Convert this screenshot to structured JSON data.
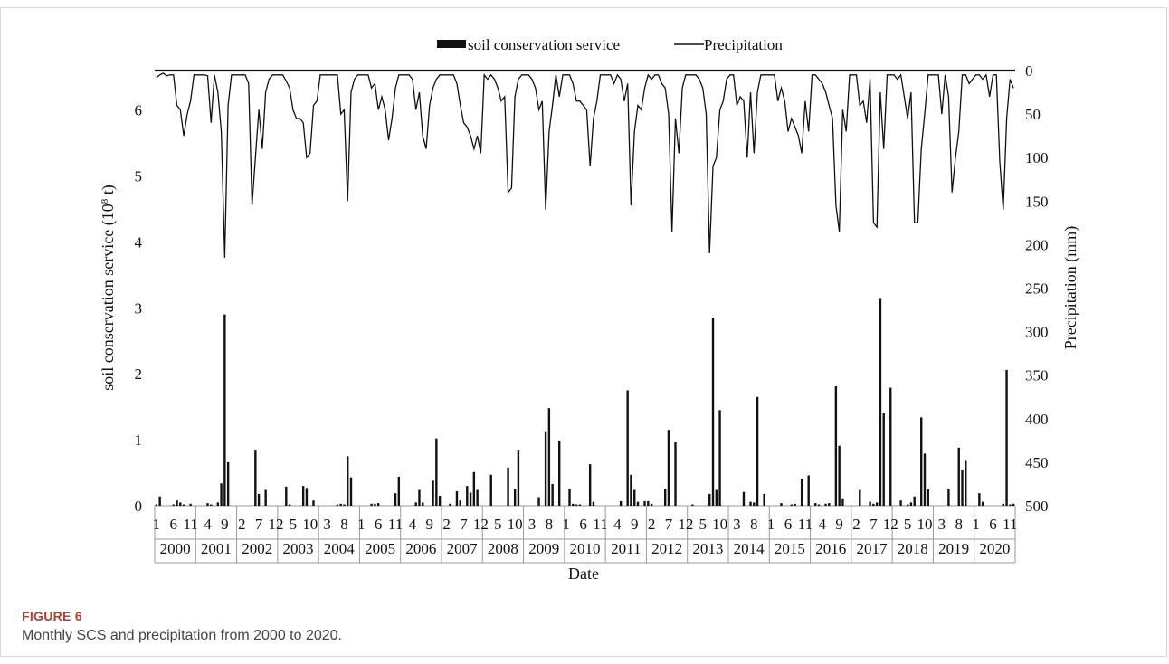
{
  "figure": {
    "label": "FIGURE 6",
    "caption": "Monthly SCS and precipitation from 2000 to 2020."
  },
  "chart_data": {
    "type": "bar+line",
    "xlabel": "Date",
    "ylabel_left": "soil conservation service (10^8 t)",
    "ylabel_left_main": "soil conservation service (10",
    "ylabel_left_sup": "8",
    "ylabel_left_tail": " t)",
    "ylabel_right": "Precipitation (mm)",
    "ylim_left": [
      0,
      6.6
    ],
    "ylim_right": [
      0,
      500
    ],
    "right_axis_inverted": true,
    "yticks_left": [
      "0",
      "1",
      "2",
      "3",
      "4",
      "5",
      "6"
    ],
    "yticks_right": [
      "0",
      "50",
      "100",
      "150",
      "200",
      "250",
      "300",
      "350",
      "400",
      "450",
      "500"
    ],
    "legend": {
      "position": "top-center",
      "entries": [
        "soil conservation service",
        "Precipitation"
      ]
    },
    "years": [
      "2000",
      "2001",
      "2002",
      "2003",
      "2004",
      "2005",
      "2006",
      "2007",
      "2008",
      "2009",
      "2010",
      "2011",
      "2012",
      "2013",
      "2014",
      "2015",
      "2016",
      "2017",
      "2018",
      "2019",
      "2020"
    ],
    "month_tick_labels": [
      [
        "1",
        "6",
        "11"
      ],
      [
        "4",
        "9"
      ],
      [
        "2",
        "7",
        "12"
      ],
      [
        "5",
        "10"
      ],
      [
        "3",
        "8"
      ],
      [
        "1",
        "6",
        "11"
      ],
      [
        "4",
        "9"
      ],
      [
        "2",
        "7",
        "12"
      ],
      [
        "5",
        "10"
      ],
      [
        "3",
        "8"
      ],
      [
        "1",
        "6",
        "11"
      ],
      [
        "4",
        "9"
      ],
      [
        "2",
        "7",
        "12"
      ],
      [
        "5",
        "10"
      ],
      [
        "3",
        "8"
      ],
      [
        "1",
        "6",
        "11"
      ],
      [
        "4",
        "9"
      ],
      [
        "2",
        "7",
        "12"
      ],
      [
        "5",
        "10"
      ],
      [
        "3",
        "8"
      ],
      [
        "1",
        "6",
        "11"
      ]
    ],
    "month_tick_index": [
      [
        1,
        6,
        11
      ],
      [
        4,
        9
      ],
      [
        2,
        7,
        12
      ],
      [
        5,
        10
      ],
      [
        3,
        8
      ],
      [
        1,
        6,
        11
      ],
      [
        4,
        9
      ],
      [
        2,
        7,
        12
      ],
      [
        5,
        10
      ],
      [
        3,
        8
      ],
      [
        1,
        6,
        11
      ],
      [
        4,
        9
      ],
      [
        2,
        7,
        12
      ],
      [
        5,
        10
      ],
      [
        3,
        8
      ],
      [
        1,
        6,
        11
      ],
      [
        4,
        9
      ],
      [
        2,
        7,
        12
      ],
      [
        5,
        10
      ],
      [
        3,
        8
      ],
      [
        1,
        6,
        11
      ]
    ],
    "series": [
      {
        "name": "soil conservation service",
        "kind": "bar",
        "axis": "left",
        "values": [
          0.02,
          0.14,
          0.0,
          0.0,
          0.0,
          0.02,
          0.08,
          0.05,
          0.02,
          0.0,
          0.03,
          0.0,
          0.0,
          0.0,
          0.0,
          0.04,
          0.02,
          0.0,
          0.05,
          0.34,
          2.9,
          0.66,
          0.0,
          0.0,
          0.0,
          0.0,
          0.0,
          0.0,
          0.0,
          0.85,
          0.18,
          0.0,
          0.24,
          0.0,
          0.0,
          0.0,
          0.0,
          0.0,
          0.29,
          0.02,
          0.0,
          0.0,
          0.0,
          0.3,
          0.27,
          0.0,
          0.08,
          0.0,
          0.0,
          0.0,
          0.0,
          0.0,
          0.0,
          0.02,
          0.03,
          0.02,
          0.75,
          0.43,
          0.0,
          0.0,
          0.0,
          0.0,
          0.0,
          0.03,
          0.03,
          0.04,
          0.0,
          0.0,
          0.0,
          0.0,
          0.19,
          0.44,
          0.0,
          0.0,
          0.0,
          0.0,
          0.05,
          0.24,
          0.05,
          0.0,
          0.0,
          0.38,
          1.02,
          0.15,
          0.0,
          0.0,
          0.03,
          0.0,
          0.22,
          0.08,
          0.0,
          0.3,
          0.2,
          0.51,
          0.24,
          0.0,
          0.0,
          0.0,
          0.47,
          0.0,
          0.0,
          0.0,
          0.0,
          0.58,
          0.0,
          0.26,
          0.85,
          0.0,
          0.0,
          0.0,
          0.0,
          0.0,
          0.13,
          0.0,
          1.13,
          1.48,
          0.33,
          0.0,
          0.98,
          0.0,
          0.0,
          0.26,
          0.03,
          0.02,
          0.02,
          0.0,
          0.0,
          0.63,
          0.06,
          0.0,
          0.0,
          0.0,
          0.0,
          0.0,
          0.0,
          0.0,
          0.07,
          0.0,
          1.75,
          0.47,
          0.24,
          0.06,
          0.0,
          0.07,
          0.07,
          0.03,
          0.0,
          0.0,
          0.0,
          0.26,
          1.15,
          0.0,
          0.96,
          0.0,
          0.0,
          0.0,
          0.0,
          0.02,
          0.0,
          0.0,
          0.0,
          0.0,
          0.18,
          2.85,
          0.24,
          1.45,
          0.0,
          0.0,
          0.0,
          0.0,
          0.0,
          0.0,
          0.21,
          0.0,
          0.06,
          0.05,
          1.65,
          0.0,
          0.18,
          0.0,
          0.0,
          0.0,
          0.0,
          0.04,
          0.0,
          0.0,
          0.02,
          0.03,
          0.0,
          0.41,
          0.0,
          0.46,
          0.0,
          0.04,
          0.02,
          0.0,
          0.03,
          0.04,
          0.0,
          1.81,
          0.91,
          0.1,
          0.0,
          0.0,
          0.0,
          0.0,
          0.24,
          0.0,
          0.0,
          0.06,
          0.03,
          0.05,
          3.15,
          1.4,
          0.0,
          1.79,
          0.0,
          0.0,
          0.08,
          0.0,
          0.02,
          0.05,
          0.14,
          0.0,
          1.34,
          0.79,
          0.25,
          0.0,
          0.0,
          0.0,
          0.0,
          0.0,
          0.26,
          0.0,
          0.0,
          0.88,
          0.54,
          0.68,
          0.0,
          0.0,
          0.0,
          0.19,
          0.06,
          0.0,
          0.0,
          0.0,
          0.0,
          0.0,
          0.03,
          2.06,
          0.02,
          0.03
        ]
      },
      {
        "name": "Precipitation",
        "kind": "line",
        "axis": "right",
        "values": [
          8,
          5,
          3,
          6,
          5,
          5,
          40,
          45,
          75,
          50,
          35,
          5,
          5,
          5,
          5,
          6,
          60,
          5,
          25,
          70,
          215,
          40,
          5,
          5,
          5,
          5,
          5,
          15,
          155,
          100,
          45,
          90,
          25,
          10,
          5,
          5,
          5,
          5,
          12,
          20,
          45,
          55,
          55,
          60,
          100,
          95,
          40,
          35,
          5,
          5,
          5,
          5,
          5,
          5,
          50,
          45,
          150,
          25,
          10,
          5,
          5,
          5,
          5,
          20,
          15,
          45,
          30,
          45,
          80,
          55,
          20,
          5,
          5,
          5,
          5,
          10,
          45,
          25,
          75,
          90,
          40,
          20,
          10,
          5,
          5,
          5,
          5,
          5,
          15,
          40,
          60,
          65,
          75,
          90,
          75,
          95,
          5,
          10,
          5,
          10,
          20,
          35,
          30,
          140,
          135,
          30,
          10,
          5,
          5,
          5,
          10,
          20,
          45,
          35,
          160,
          70,
          40,
          5,
          30,
          5,
          5,
          5,
          15,
          35,
          35,
          40,
          45,
          110,
          55,
          35,
          5,
          5,
          5,
          5,
          15,
          5,
          10,
          35,
          15,
          155,
          70,
          40,
          45,
          20,
          5,
          10,
          5,
          5,
          15,
          20,
          50,
          185,
          55,
          95,
          20,
          5,
          5,
          5,
          5,
          10,
          20,
          50,
          210,
          110,
          100,
          45,
          35,
          10,
          5,
          5,
          40,
          30,
          35,
          100,
          25,
          95,
          25,
          5,
          5,
          5,
          5,
          5,
          35,
          20,
          35,
          70,
          55,
          65,
          75,
          95,
          35,
          70,
          5,
          5,
          10,
          15,
          25,
          40,
          55,
          155,
          185,
          45,
          70,
          5,
          5,
          5,
          40,
          35,
          60,
          10,
          175,
          180,
          25,
          90,
          5,
          5,
          5,
          10,
          5,
          30,
          55,
          25,
          175,
          175,
          90,
          50,
          5,
          5,
          5,
          5,
          50,
          5,
          30,
          140,
          100,
          70,
          5,
          5,
          15,
          10,
          5,
          5,
          10,
          5,
          30,
          5,
          5,
          105,
          160,
          55,
          10,
          20
        ]
      }
    ]
  }
}
